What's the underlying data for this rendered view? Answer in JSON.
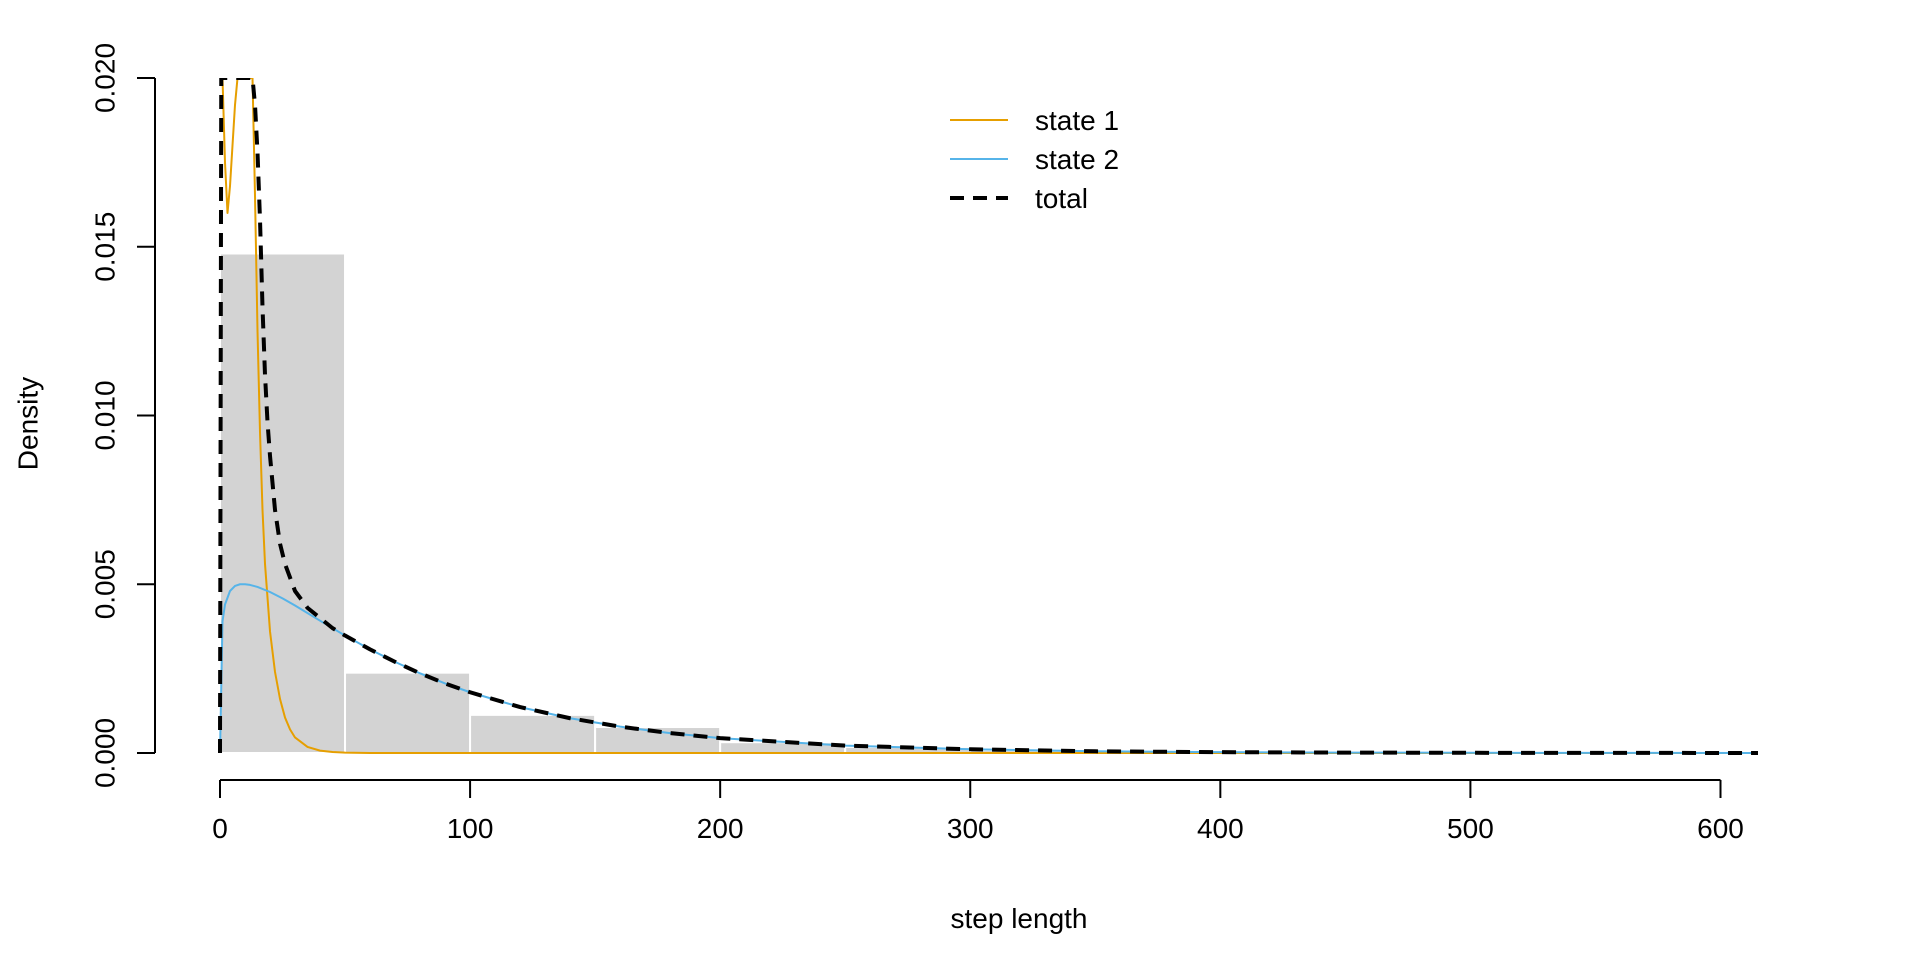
{
  "chart_data": {
    "type": "histogram",
    "xlabel": "step length",
    "ylabel": "Density",
    "xlim": [
      0,
      615
    ],
    "ylim": [
      0,
      0.02
    ],
    "x_ticks": [
      0,
      100,
      200,
      300,
      400,
      500,
      600
    ],
    "x_tick_labels": [
      "0",
      "100",
      "200",
      "300",
      "400",
      "500",
      "600"
    ],
    "y_ticks": [
      0,
      0.005,
      0.01,
      0.015,
      0.02
    ],
    "y_tick_labels": [
      "0.000",
      "0.005",
      "0.010",
      "0.015",
      "0.020"
    ],
    "histogram": {
      "bin_edges": [
        0,
        50,
        100,
        150,
        200,
        250,
        300,
        350,
        400,
        450,
        500,
        550,
        600
      ],
      "densities": [
        0.0148,
        0.00238,
        0.00113,
        0.00077,
        0.00032,
        0.00018,
        9e-05,
        5e-05,
        3e-05,
        2e-05,
        1e-05,
        1e-05
      ],
      "color": "#d3d3d3"
    },
    "series": [
      {
        "name": "state 1",
        "color": "#e69f00",
        "style": "solid",
        "x": [
          0,
          1,
          2,
          3,
          4,
          5,
          6,
          7,
          8,
          9,
          10,
          11,
          12,
          13,
          14,
          15,
          16,
          17,
          18,
          20,
          22,
          24,
          26,
          28,
          30,
          35,
          40,
          45,
          50,
          60,
          80,
          100,
          200,
          615
        ],
        "y": [
          0.02,
          0.02,
          0.0175,
          0.016,
          0.0168,
          0.018,
          0.0192,
          0.02,
          0.02,
          0.02,
          0.02,
          0.02,
          0.02,
          0.02,
          0.0165,
          0.0125,
          0.0095,
          0.0072,
          0.0056,
          0.0036,
          0.0024,
          0.0016,
          0.00105,
          0.0007,
          0.00046,
          0.00018,
          7e-05,
          3e-05,
          1e-05,
          0.0,
          0.0,
          0.0,
          0.0,
          0.0
        ]
      },
      {
        "name": "state 2",
        "color": "#56b4e9",
        "style": "solid",
        "x": [
          0,
          1,
          2,
          4,
          6,
          8,
          10,
          12,
          15,
          20,
          25,
          30,
          40,
          50,
          60,
          70,
          80,
          90,
          100,
          120,
          140,
          160,
          180,
          200,
          250,
          300,
          350,
          400,
          450,
          500,
          550,
          615
        ],
        "y": [
          0.0,
          0.0039,
          0.0044,
          0.0048,
          0.00495,
          0.005,
          0.005,
          0.00498,
          0.00492,
          0.00477,
          0.00458,
          0.00437,
          0.00392,
          0.00348,
          0.00307,
          0.0027,
          0.00236,
          0.00206,
          0.0018,
          0.00136,
          0.00103,
          0.00078,
          0.00059,
          0.00044,
          0.00022,
          0.00011,
          5e-05,
          2.5e-05,
          1.2e-05,
          6e-06,
          3e-06,
          1e-06
        ]
      },
      {
        "name": "total",
        "color": "#000000",
        "style": "dashed",
        "x": [
          0,
          0.5,
          1,
          2,
          4,
          6,
          8,
          10,
          11,
          12,
          13,
          14,
          15,
          16,
          17,
          18,
          19,
          20,
          22,
          24,
          26,
          28,
          30,
          35,
          40,
          45,
          50,
          60,
          70,
          80,
          90,
          100,
          120,
          140,
          160,
          180,
          200,
          250,
          300,
          350,
          400,
          450,
          500,
          550,
          615
        ],
        "y": [
          0.0,
          0.02,
          0.02,
          0.02,
          0.02,
          0.02,
          0.02,
          0.02,
          0.02,
          0.02,
          0.02,
          0.0192,
          0.0178,
          0.0158,
          0.0132,
          0.0112,
          0.0098,
          0.0088,
          0.0072,
          0.0062,
          0.0056,
          0.0052,
          0.0048,
          0.0043,
          0.004,
          0.0037,
          0.00348,
          0.00307,
          0.0027,
          0.00236,
          0.00206,
          0.0018,
          0.00136,
          0.00103,
          0.00078,
          0.00059,
          0.00044,
          0.00022,
          0.00011,
          5e-05,
          2.5e-05,
          1.2e-05,
          6e-06,
          3e-06,
          1e-06
        ]
      }
    ],
    "legend": {
      "position": "top-center",
      "entries": [
        "state 1",
        "state 2",
        "total"
      ]
    }
  }
}
